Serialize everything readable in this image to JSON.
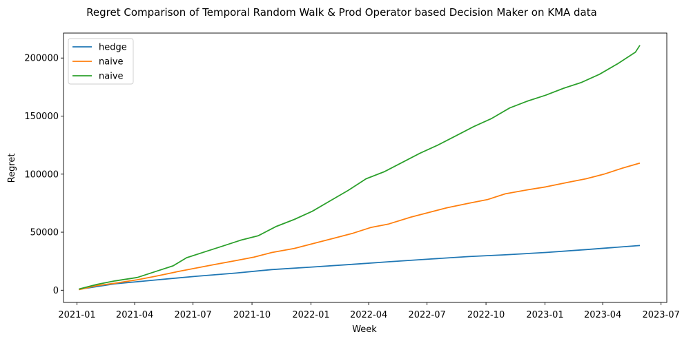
{
  "chart_data": {
    "type": "line",
    "title": "Regret Comparison of Temporal Random Walk & Prod Operator based Decision Maker on KMA data",
    "xlabel": "Week",
    "ylabel": "Regret",
    "x_ticks": [
      "2021-01",
      "2021-04",
      "2021-07",
      "2021-10",
      "2022-01",
      "2022-04",
      "2022-07",
      "2022-10",
      "2023-01",
      "2023-04",
      "2023-07"
    ],
    "x_tick_dates": [
      "2021-01-01",
      "2021-04-01",
      "2021-07-01",
      "2021-10-01",
      "2022-01-01",
      "2022-04-01",
      "2022-07-01",
      "2022-10-01",
      "2023-01-01",
      "2023-04-01",
      "2023-07-01"
    ],
    "y_ticks": [
      0,
      50000,
      100000,
      150000,
      200000
    ],
    "y_tick_labels": [
      "0",
      "50000",
      "100000",
      "150000",
      "200000"
    ],
    "xlim": [
      "2020-12-11",
      "2023-07-10"
    ],
    "ylim": [
      -10500,
      221500
    ],
    "grid": false,
    "legend_position": "top-left",
    "series": [
      {
        "name": "hedge",
        "color": "#1f77b4",
        "x": [
          "2021-01-04",
          "2021-03-01",
          "2021-05-03",
          "2021-07-05",
          "2021-09-06",
          "2021-11-01",
          "2022-01-03",
          "2022-03-07",
          "2022-05-02",
          "2022-07-04",
          "2022-09-05",
          "2022-10-31",
          "2023-01-02",
          "2023-03-06",
          "2023-05-29"
        ],
        "y": [
          800,
          5500,
          8800,
          12000,
          14800,
          17800,
          20000,
          22300,
          24500,
          26800,
          29000,
          30500,
          32500,
          35000,
          38500
        ]
      },
      {
        "name": "naive",
        "color": "#ff7f0e",
        "x": [
          "2021-01-04",
          "2021-02-01",
          "2021-03-01",
          "2021-04-05",
          "2021-05-03",
          "2021-06-07",
          "2021-07-05",
          "2021-08-02",
          "2021-09-06",
          "2021-10-04",
          "2021-11-01",
          "2021-12-06",
          "2022-01-03",
          "2022-02-07",
          "2022-03-07",
          "2022-04-04",
          "2022-05-02",
          "2022-06-06",
          "2022-07-04",
          "2022-08-01",
          "2022-09-05",
          "2022-10-03",
          "2022-10-31",
          "2022-12-05",
          "2023-01-02",
          "2023-02-06",
          "2023-03-06",
          "2023-04-03",
          "2023-05-01",
          "2023-05-29"
        ],
        "y": [
          500,
          4000,
          6000,
          9000,
          12000,
          16000,
          19000,
          22000,
          25500,
          28500,
          32500,
          36000,
          40000,
          45000,
          49000,
          54000,
          57000,
          63000,
          67000,
          71000,
          75000,
          78000,
          83000,
          86500,
          89000,
          93000,
          96000,
          100000,
          105000,
          109500
        ]
      },
      {
        "name": "naive",
        "color": "#2ca02c",
        "x": [
          "2021-01-04",
          "2021-02-01",
          "2021-03-01",
          "2021-04-05",
          "2021-05-03",
          "2021-05-31",
          "2021-06-21",
          "2021-07-19",
          "2021-08-16",
          "2021-09-13",
          "2021-10-11",
          "2021-11-08",
          "2021-12-06",
          "2022-01-03",
          "2022-01-31",
          "2022-02-28",
          "2022-03-28",
          "2022-04-25",
          "2022-05-23",
          "2022-06-20",
          "2022-07-18",
          "2022-08-15",
          "2022-09-12",
          "2022-10-10",
          "2022-11-07",
          "2022-12-05",
          "2023-01-02",
          "2023-01-30",
          "2023-02-27",
          "2023-03-27",
          "2023-04-24",
          "2023-05-22",
          "2023-05-29"
        ],
        "y": [
          1000,
          5000,
          8000,
          11000,
          16000,
          21000,
          28000,
          33000,
          38000,
          43000,
          47000,
          55000,
          61000,
          68000,
          77000,
          86000,
          96000,
          102000,
          110000,
          118000,
          125000,
          133000,
          141000,
          148000,
          157000,
          163000,
          168000,
          174000,
          179000,
          186000,
          195000,
          205000,
          211000
        ]
      }
    ]
  }
}
